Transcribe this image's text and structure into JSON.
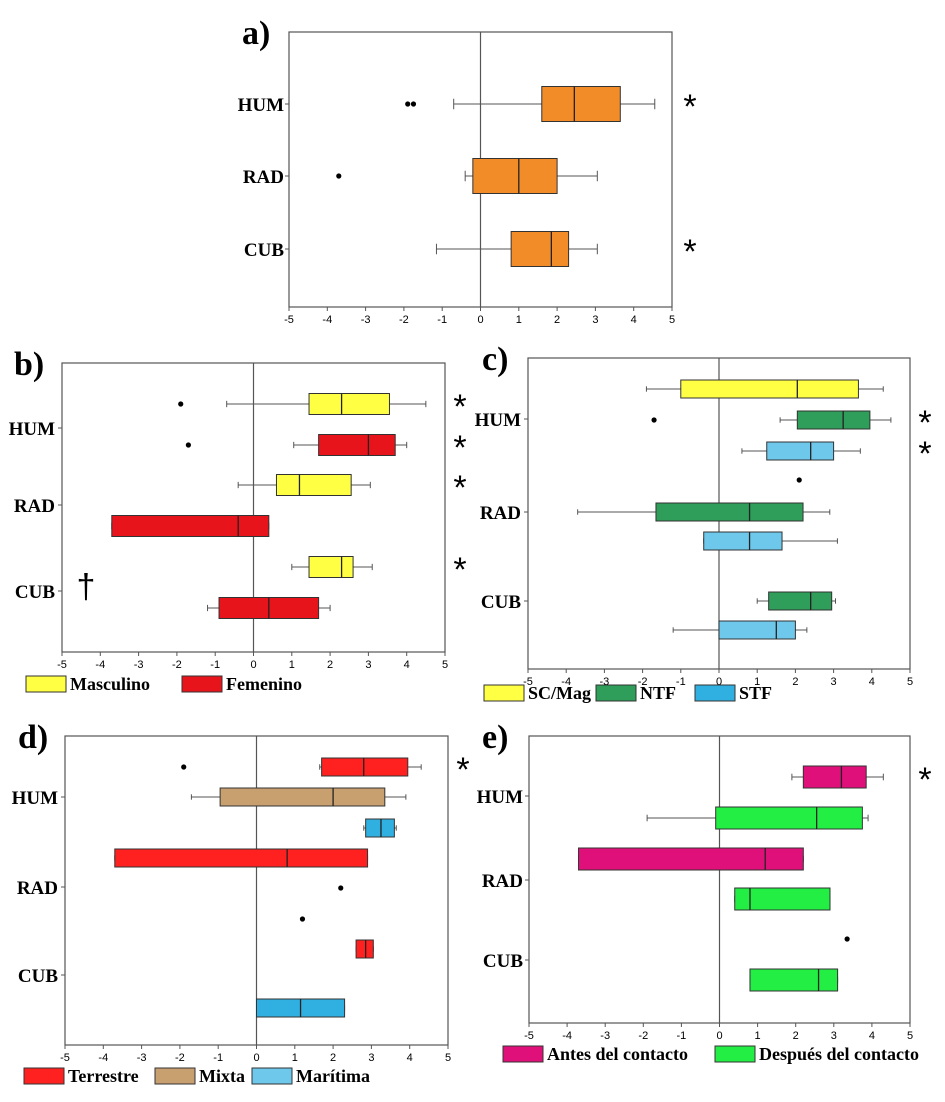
{
  "colors": {
    "orange": "#f28c28",
    "yellow": "#ffff44",
    "red": "#e8141c",
    "light_red": "#ff2020",
    "dark_green": "#2e9e5a",
    "sky_blue": "#6ec8ec",
    "tan": "#c8a070",
    "blue": "#30b0e0",
    "magenta": "#e0107a",
    "bright_green": "#22ee44"
  },
  "chart_data": [
    {
      "panel": "a)",
      "type": "boxplot",
      "orientation": "horizontal",
      "categories": [
        "HUM",
        "RAD",
        "CUB"
      ],
      "xlim": [
        -5,
        5
      ],
      "xticks": [
        "-5",
        "-4",
        "-3",
        "-2",
        "-1",
        "0",
        "1",
        "2",
        "3",
        "4",
        "5"
      ],
      "reference_line": 0,
      "series": [
        {
          "category": "HUM",
          "color": "orange",
          "whisker_low": -0.7,
          "q1": 1.6,
          "median": 2.45,
          "q3": 3.65,
          "whisker_high": 4.55,
          "outliers": [
            -1.9,
            -1.75
          ],
          "significant": true
        },
        {
          "category": "RAD",
          "color": "orange",
          "whisker_low": -0.4,
          "q1": -0.2,
          "median": 1.0,
          "q3": 2.0,
          "whisker_high": 3.05,
          "outliers": [
            -3.7
          ],
          "significant": false
        },
        {
          "category": "CUB",
          "color": "orange",
          "whisker_low": -1.15,
          "q1": 0.8,
          "median": 1.85,
          "q3": 2.3,
          "whisker_high": 3.05,
          "outliers": [],
          "significant": true
        }
      ],
      "significance_mark": "*"
    },
    {
      "panel": "b)",
      "type": "boxplot",
      "orientation": "horizontal",
      "categories": [
        "HUM",
        "RAD",
        "CUB"
      ],
      "xlim": [
        -5,
        5
      ],
      "xticks": [
        "-5",
        "-4",
        "-3",
        "-2",
        "-1",
        "0",
        "1",
        "2",
        "3",
        "4",
        "5"
      ],
      "reference_line": 0,
      "legend": [
        {
          "label": "Masculino",
          "color": "yellow"
        },
        {
          "label": "Femenino",
          "color": "red"
        }
      ],
      "series": [
        {
          "category": "HUM",
          "group": "Masculino",
          "color": "yellow",
          "whisker_low": -0.7,
          "q1": 1.45,
          "median": 2.3,
          "q3": 3.55,
          "whisker_high": 4.5,
          "outliers": [
            -1.9
          ],
          "significant": true
        },
        {
          "category": "HUM",
          "group": "Femenino",
          "color": "red",
          "whisker_low": 1.05,
          "q1": 1.7,
          "median": 3.0,
          "q3": 3.7,
          "whisker_high": 4.0,
          "outliers": [
            -1.7
          ],
          "significant": true
        },
        {
          "category": "RAD",
          "group": "Masculino",
          "color": "yellow",
          "whisker_low": -0.4,
          "q1": 0.6,
          "median": 1.2,
          "q3": 2.55,
          "whisker_high": 3.05,
          "outliers": [],
          "significant": true
        },
        {
          "category": "RAD",
          "group": "Femenino",
          "color": "red",
          "whisker_low": -3.7,
          "q1": -3.7,
          "median": -0.4,
          "q3": 0.4,
          "whisker_high": 0.4,
          "outliers": [],
          "significant": false
        },
        {
          "category": "CUB",
          "group": "Masculino",
          "color": "yellow",
          "whisker_low": 1.0,
          "q1": 1.45,
          "median": 2.3,
          "q3": 2.6,
          "whisker_high": 3.1,
          "outliers": [],
          "significant": true
        },
        {
          "category": "CUB",
          "group": "Femenino",
          "color": "red",
          "whisker_low": -1.2,
          "q1": -0.9,
          "median": 0.4,
          "q3": 1.7,
          "whisker_high": 2.0,
          "outliers": [],
          "significant": false
        }
      ],
      "significance_mark": "*",
      "dagger_mark": "†"
    },
    {
      "panel": "c)",
      "type": "boxplot",
      "orientation": "horizontal",
      "categories": [
        "HUM",
        "RAD",
        "CUB"
      ],
      "xlim": [
        -5,
        5
      ],
      "xticks": [
        "-5",
        "-4",
        "-3",
        "-2",
        "-1",
        "0",
        "1",
        "2",
        "3",
        "4",
        "5"
      ],
      "reference_line": 0,
      "legend": [
        {
          "label": "SC/Mag",
          "color": "yellow"
        },
        {
          "label": "NTF",
          "color": "dark_green"
        },
        {
          "label": "STF",
          "color": "blue"
        }
      ],
      "series": [
        {
          "category": "HUM",
          "group": "SC/Mag",
          "color": "yellow",
          "whisker_low": -1.9,
          "q1": -1.0,
          "median": 2.05,
          "q3": 3.65,
          "whisker_high": 4.3,
          "outliers": [],
          "significant": false
        },
        {
          "category": "HUM",
          "group": "NTF",
          "color": "dark_green",
          "whisker_low": 1.6,
          "q1": 2.05,
          "median": 3.25,
          "q3": 3.95,
          "whisker_high": 4.5,
          "outliers": [
            -1.7
          ],
          "significant": true
        },
        {
          "category": "HUM",
          "group": "STF",
          "color": "sky_blue",
          "whisker_low": 0.6,
          "q1": 1.25,
          "median": 2.4,
          "q3": 3.0,
          "whisker_high": 3.7,
          "outliers": [
            2.1
          ],
          "significant": true
        },
        {
          "category": "RAD",
          "group": "NTF",
          "color": "dark_green",
          "whisker_low": -3.7,
          "q1": -1.65,
          "median": 0.8,
          "q3": 2.2,
          "whisker_high": 2.9,
          "outliers": [],
          "significant": false
        },
        {
          "category": "RAD",
          "group": "STF",
          "color": "sky_blue",
          "whisker_low": -0.4,
          "q1": -0.4,
          "median": 0.8,
          "q3": 1.65,
          "whisker_high": 3.1,
          "outliers": [],
          "significant": false
        },
        {
          "category": "CUB",
          "group": "NTF",
          "color": "dark_green",
          "whisker_low": 1.0,
          "q1": 1.3,
          "median": 2.4,
          "q3": 2.95,
          "whisker_high": 3.05,
          "outliers": [],
          "significant": false
        },
        {
          "category": "CUB",
          "group": "STF",
          "color": "sky_blue",
          "whisker_low": -1.2,
          "q1": 0.0,
          "median": 1.5,
          "q3": 2.0,
          "whisker_high": 2.3,
          "outliers": [],
          "significant": false
        }
      ],
      "significance_mark": "*"
    },
    {
      "panel": "d)",
      "type": "boxplot",
      "orientation": "horizontal",
      "categories": [
        "HUM",
        "RAD",
        "CUB"
      ],
      "xlim": [
        -5,
        5
      ],
      "xticks": [
        "-5",
        "-4",
        "-3",
        "-2",
        "-1",
        "0",
        "1",
        "2",
        "3",
        "4",
        "5"
      ],
      "reference_line": 0,
      "legend": [
        {
          "label": "Terrestre",
          "color": "light_red"
        },
        {
          "label": "Mixta",
          "color": "tan"
        },
        {
          "label": "Marítima",
          "color": "sky_blue"
        }
      ],
      "series": [
        {
          "category": "HUM",
          "group": "Terrestre",
          "color": "light_red",
          "whisker_low": 1.65,
          "q1": 1.7,
          "median": 2.8,
          "q3": 3.95,
          "whisker_high": 4.3,
          "outliers": [
            -1.9
          ],
          "significant": true
        },
        {
          "category": "HUM",
          "group": "Mixta",
          "color": "tan",
          "whisker_low": -1.7,
          "q1": -0.95,
          "median": 2.0,
          "q3": 3.35,
          "whisker_high": 3.9,
          "outliers": [],
          "significant": false
        },
        {
          "category": "HUM",
          "group": "Marítima",
          "color": "blue",
          "whisker_low": 2.8,
          "q1": 2.85,
          "median": 3.25,
          "q3": 3.6,
          "whisker_high": 3.65,
          "outliers": [],
          "significant": false
        },
        {
          "category": "RAD",
          "group": "Terrestre",
          "color": "light_red",
          "whisker_low": -3.7,
          "q1": -3.7,
          "median": 0.8,
          "q3": 2.9,
          "whisker_high": 2.9,
          "outliers": [
            2.2
          ],
          "significant": false
        },
        {
          "category": "CUB",
          "group": "Terrestre",
          "color": "light_red",
          "whisker_low": 2.6,
          "q1": 2.6,
          "median": 2.85,
          "q3": 3.05,
          "whisker_high": 3.05,
          "outliers": [
            1.2
          ],
          "significant": false
        },
        {
          "category": "CUB",
          "group": "Marítima",
          "color": "blue",
          "whisker_low": 0.0,
          "q1": 0.0,
          "median": 1.15,
          "q3": 2.3,
          "whisker_high": 2.3,
          "outliers": [],
          "significant": false
        }
      ],
      "significance_mark": "*"
    },
    {
      "panel": "e)",
      "type": "boxplot",
      "orientation": "horizontal",
      "categories": [
        "HUM",
        "RAD",
        "CUB"
      ],
      "xlim": [
        -5,
        5
      ],
      "xticks": [
        "-5",
        "-4",
        "-3",
        "-2",
        "-1",
        "0",
        "1",
        "2",
        "3",
        "4",
        "5"
      ],
      "reference_line": 0,
      "legend": [
        {
          "label": "Antes del contacto",
          "color": "magenta"
        },
        {
          "label": "Después del contacto",
          "color": "bright_green"
        }
      ],
      "series": [
        {
          "category": "HUM",
          "group": "Antes del contacto",
          "color": "magenta",
          "whisker_low": 1.9,
          "q1": 2.2,
          "median": 3.2,
          "q3": 3.85,
          "whisker_high": 4.3,
          "outliers": [],
          "significant": true
        },
        {
          "category": "HUM",
          "group": "Después del contacto",
          "color": "bright_green",
          "whisker_low": -1.9,
          "q1": -0.1,
          "median": 2.55,
          "q3": 3.75,
          "whisker_high": 3.9,
          "outliers": [],
          "significant": false
        },
        {
          "category": "RAD",
          "group": "Antes del contacto",
          "color": "magenta",
          "whisker_low": -3.7,
          "q1": -3.7,
          "median": 1.2,
          "q3": 2.2,
          "whisker_high": 2.2,
          "outliers": [],
          "significant": false
        },
        {
          "category": "RAD",
          "group": "Después del contacto",
          "color": "bright_green",
          "whisker_low": 0.4,
          "q1": 0.4,
          "median": 0.8,
          "q3": 2.9,
          "whisker_high": 2.9,
          "outliers": [],
          "significant": false
        },
        {
          "category": "CUB",
          "group": "Después del contacto",
          "color": "bright_green",
          "whisker_low": 0.8,
          "q1": 0.8,
          "median": 2.6,
          "q3": 3.1,
          "whisker_high": 3.1,
          "outliers": [
            3.35
          ],
          "significant": false
        }
      ],
      "significance_mark": "*"
    }
  ]
}
